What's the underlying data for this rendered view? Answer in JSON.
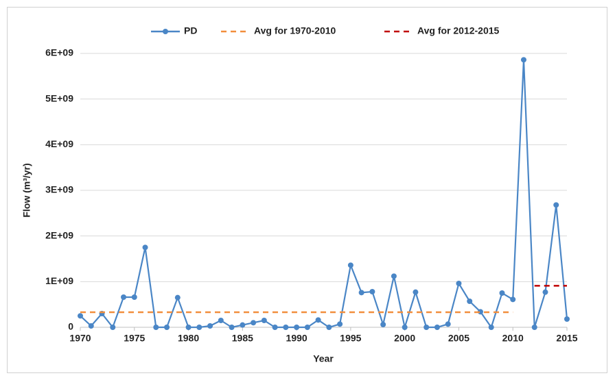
{
  "chart_data": {
    "type": "line",
    "xlabel": "Year",
    "ylabel": "Flow (m³/yr)",
    "legend": "top",
    "grid": true,
    "xlim": [
      1970,
      2015
    ],
    "xticks": [
      1970,
      1975,
      1980,
      1985,
      1990,
      1995,
      2000,
      2005,
      2010,
      2015
    ],
    "ylim": [
      0,
      6000000000
    ],
    "yticks": [
      0,
      {
        "value": 1000000000,
        "label": "1E+09"
      },
      {
        "value": 2000000000,
        "label": "2E+09"
      },
      {
        "value": 3000000000,
        "label": "3E+09"
      },
      {
        "value": 4000000000,
        "label": "4E+09"
      },
      {
        "value": 5000000000,
        "label": "5E+09"
      },
      {
        "value": 6000000000,
        "label": "6E+09"
      }
    ],
    "series": [
      {
        "name": "PD",
        "color": "#4a86c6",
        "markers": true,
        "dashed": false,
        "x": [
          1970,
          1971,
          1972,
          1973,
          1974,
          1975,
          1976,
          1977,
          1978,
          1979,
          1980,
          1981,
          1982,
          1983,
          1984,
          1985,
          1986,
          1987,
          1988,
          1989,
          1990,
          1991,
          1992,
          1993,
          1994,
          1995,
          1996,
          1997,
          1998,
          1999,
          2000,
          2001,
          2002,
          2003,
          2004,
          2005,
          2006,
          2007,
          2008,
          2009,
          2010,
          2011,
          2012,
          2013,
          2014,
          2015
        ],
        "values": [
          250000000,
          30000000,
          300000000,
          0,
          660000000,
          660000000,
          1750000000,
          0,
          0,
          650000000,
          0,
          0,
          30000000,
          150000000,
          0,
          50000000,
          100000000,
          150000000,
          0,
          0,
          0,
          0,
          160000000,
          0,
          70000000,
          1360000000,
          760000000,
          780000000,
          60000000,
          1120000000,
          0,
          770000000,
          0,
          0,
          70000000,
          960000000,
          570000000,
          340000000,
          0,
          750000000,
          610000000,
          5860000000,
          0,
          770000000,
          2680000000,
          180000000
        ]
      },
      {
        "name": "Avg for 1970-2010",
        "color": "#f28e3c",
        "markers": false,
        "dashed": true,
        "x": [
          1970,
          2010
        ],
        "values": [
          330000000,
          330000000
        ]
      },
      {
        "name": "Avg for 2012-2015",
        "color": "#c00000",
        "markers": false,
        "dashed": true,
        "x": [
          2012,
          2015
        ],
        "values": [
          910000000,
          910000000
        ]
      }
    ]
  }
}
